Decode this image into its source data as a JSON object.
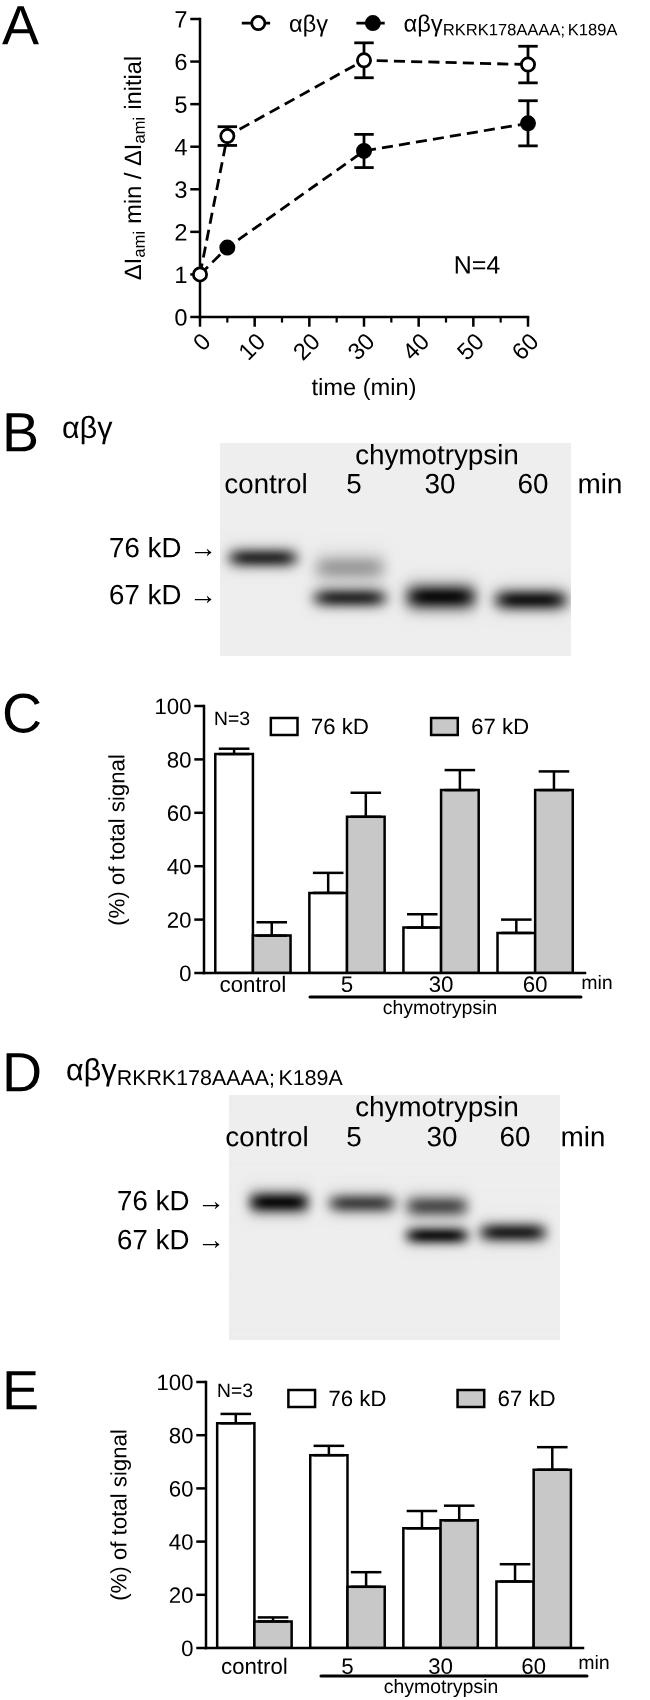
{
  "chart_data": [
    {
      "type": "line",
      "title": "A",
      "xlabel": "time (min)",
      "ylabel": "ΔI$_{ami}$ min / ΔI$_{ami}$ initial",
      "x": [
        0,
        5,
        30,
        60
      ],
      "series": [
        {
          "name": "αβγ",
          "color": "#000000",
          "values": [
            1,
            4.25,
            6.03,
            5.93
          ],
          "errors": [
            null,
            0.22,
            0.41,
            0.43
          ]
        },
        {
          "name": "αβγ$_{RKRK178AAAA;K189A}$",
          "color": "#000000",
          "values": [
            1,
            1.63,
            3.9,
            4.55
          ],
          "errors": [
            null,
            null,
            0.39,
            0.53
          ]
        }
      ],
      "xlim": [
        0,
        60
      ],
      "ylim": [
        0,
        7
      ],
      "xticks": [
        0,
        10,
        20,
        30,
        40,
        50,
        60
      ],
      "yticks": [
        0,
        1,
        2,
        3,
        4,
        5,
        6,
        7
      ],
      "marker": "circle",
      "line_style": "dashed",
      "legend": "top",
      "annotations": [
        "N=4"
      ]
    },
    {
      "type": "other",
      "title": "B",
      "subtitle": "αβγ",
      "annotations": [
        "chymotrypsin",
        "control",
        "5",
        "30",
        "60",
        "min",
        "76 kD →",
        "67 kD →"
      ]
    },
    {
      "type": "bar",
      "title": "C",
      "ylabel": "(%) of total signal",
      "categories": [
        "control",
        "5",
        "30",
        "60"
      ],
      "series": [
        {
          "name": "76 kD",
          "color": "#ffffff",
          "values": [
            82,
            30,
            17,
            15
          ],
          "errors": [
            [
              82,
              84
            ],
            [
              30,
              37.5
            ],
            [
              17,
              22
            ],
            [
              15,
              20
            ]
          ]
        },
        {
          "name": "67 kD",
          "color": "#c8c8c8",
          "values": [
            14,
            58.5,
            68.5,
            68.5
          ],
          "errors": [
            [
              14,
              19
            ],
            [
              58.5,
              67.5
            ],
            [
              68.5,
              76
            ],
            [
              68.5,
              75.5
            ]
          ]
        }
      ],
      "ylim": [
        0,
        100
      ],
      "yticks": [
        0,
        20,
        40,
        60,
        80,
        100
      ],
      "legend": "top",
      "annotations": [
        "N=3",
        "min",
        "chymotrypsin"
      ]
    },
    {
      "type": "other",
      "title": "D",
      "subtitle": "αβγ$_{RKRK178AAAA;K189A}$",
      "annotations": [
        "chymotrypsin",
        "control",
        "5",
        "30",
        "60",
        "min",
        "76 kD →",
        "67 kD →"
      ]
    },
    {
      "type": "bar",
      "title": "E",
      "ylabel": "(%) of total signal",
      "categories": [
        "control",
        "5",
        "30",
        "60"
      ],
      "series": [
        {
          "name": "76 kD",
          "color": "#ffffff",
          "values": [
            84.5,
            72.5,
            45,
            25
          ],
          "errors": [
            [
              84.5,
              88
            ],
            [
              72.5,
              76
            ],
            [
              45,
              51.5
            ],
            [
              25,
              31.5
            ]
          ]
        },
        {
          "name": "67 kD",
          "color": "#c8c8c8",
          "values": [
            10,
            23,
            48,
            67
          ],
          "errors": [
            [
              10,
              11.5
            ],
            [
              23,
              28.5
            ],
            [
              48,
              53.5
            ],
            [
              67,
              75.5
            ]
          ]
        }
      ],
      "ylim": [
        0,
        100
      ],
      "yticks": [
        0,
        20,
        40,
        60,
        80,
        100
      ],
      "legend": "top",
      "annotations": [
        "N=3",
        "min",
        "chymotrypsin"
      ]
    }
  ]
}
